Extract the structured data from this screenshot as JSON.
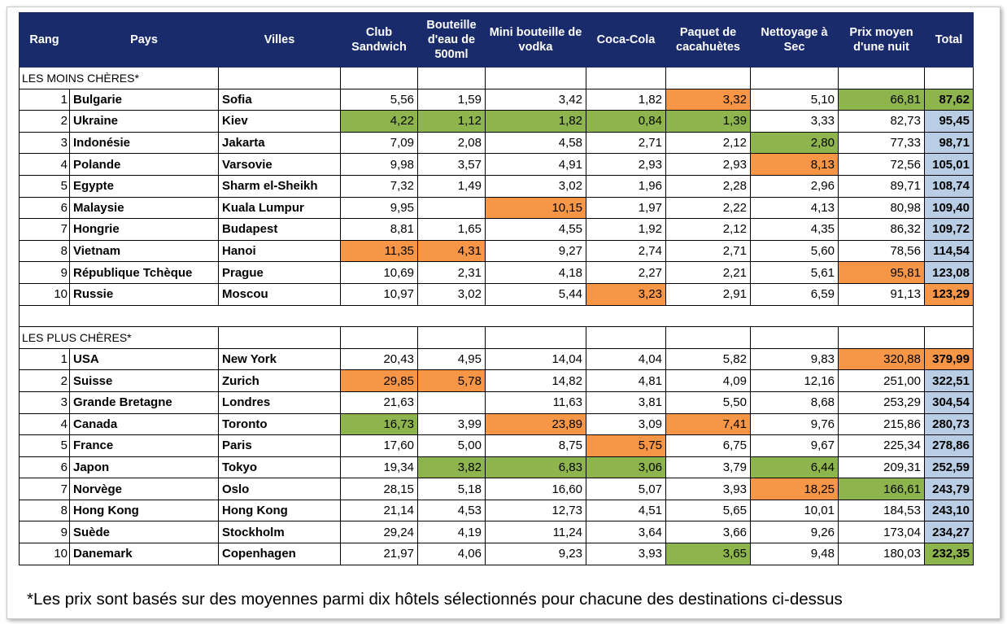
{
  "headers": [
    "Rang",
    "Pays",
    "Villes",
    "Club Sandwich",
    "Bouteille d'eau de 500ml",
    "Mini bouteille de vodka",
    "Coca-Cola",
    "Paquet de cacahuètes",
    "Nettoyage à Sec",
    "Prix moyen d'une nuit",
    "Total"
  ],
  "colors": {
    "header": "#1a2b6b",
    "green": "#8db44d",
    "orange": "#f79646",
    "total_blue": "#b9cde5"
  },
  "sections": [
    {
      "title": "LES MOINS CHÈRES*",
      "rows": [
        {
          "rank": "1",
          "country": "Bulgarie",
          "city": "Sofia",
          "values": [
            "5,56",
            "1,59",
            "3,42",
            "1,82",
            "3,32",
            "5,10",
            "66,81"
          ],
          "total": "87,62",
          "hl": [
            "",
            "",
            "",
            "",
            "orange",
            "",
            "green"
          ],
          "total_hl": "green"
        },
        {
          "rank": "2",
          "country": "Ukraine",
          "city": "Kiev",
          "values": [
            "4,22",
            "1,12",
            "1,82",
            "0,84",
            "1,39",
            "3,33",
            "82,73"
          ],
          "total": "95,45",
          "hl": [
            "green",
            "green",
            "green",
            "green",
            "green",
            "",
            ""
          ],
          "total_hl": "blue"
        },
        {
          "rank": "3",
          "country": "Indonésie",
          "city": "Jakarta",
          "values": [
            "7,09",
            "2,08",
            "4,58",
            "2,71",
            "2,12",
            "2,80",
            "77,33"
          ],
          "total": "98,71",
          "hl": [
            "",
            "",
            "",
            "",
            "",
            "green",
            ""
          ],
          "total_hl": "blue"
        },
        {
          "rank": "4",
          "country": "Polande",
          "city": "Varsovie",
          "values": [
            "9,98",
            "3,57",
            "4,91",
            "2,93",
            "2,93",
            "8,13",
            "72,56"
          ],
          "total": "105,01",
          "hl": [
            "",
            "",
            "",
            "",
            "",
            "orange",
            ""
          ],
          "total_hl": "blue"
        },
        {
          "rank": "5",
          "country": "Egypte",
          "city": "Sharm el-Sheikh",
          "values": [
            "7,32",
            "1,49",
            "3,02",
            "1,96",
            "2,28",
            "2,96",
            "89,71"
          ],
          "total": "108,74",
          "hl": [
            "",
            "",
            "",
            "",
            "",
            "",
            ""
          ],
          "total_hl": "blue"
        },
        {
          "rank": "6",
          "country": "Malaysie",
          "city": "Kuala Lumpur",
          "values": [
            "9,95",
            "",
            "10,15",
            "1,97",
            "2,22",
            "4,13",
            "80,98"
          ],
          "total": "109,40",
          "hl": [
            "",
            "",
            "orange",
            "",
            "",
            "",
            ""
          ],
          "total_hl": "blue"
        },
        {
          "rank": "7",
          "country": "Hongrie",
          "city": "Budapest",
          "values": [
            "8,81",
            "1,65",
            "4,55",
            "1,92",
            "2,12",
            "4,35",
            "86,32"
          ],
          "total": "109,72",
          "hl": [
            "",
            "",
            "",
            "",
            "",
            "",
            ""
          ],
          "total_hl": "blue"
        },
        {
          "rank": "8",
          "country": "Vietnam",
          "city": "Hanoi",
          "values": [
            "11,35",
            "4,31",
            "9,27",
            "2,74",
            "2,71",
            "5,60",
            "78,56"
          ],
          "total": "114,54",
          "hl": [
            "orange",
            "orange",
            "",
            "",
            "",
            "",
            ""
          ],
          "total_hl": "blue"
        },
        {
          "rank": "9",
          "country": "République Tchèque",
          "city": "Prague",
          "values": [
            "10,69",
            "2,31",
            "4,18",
            "2,27",
            "2,21",
            "5,61",
            "95,81"
          ],
          "total": "123,08",
          "hl": [
            "",
            "",
            "",
            "",
            "",
            "",
            "orange"
          ],
          "total_hl": "blue"
        },
        {
          "rank": "10",
          "country": "Russie",
          "city": "Moscou",
          "values": [
            "10,97",
            "3,02",
            "5,44",
            "3,23",
            "2,91",
            "6,59",
            "91,13"
          ],
          "total": "123,29",
          "hl": [
            "",
            "",
            "",
            "orange",
            "",
            "",
            ""
          ],
          "total_hl": "orange"
        }
      ]
    },
    {
      "title": "LES PLUS CHÈRES*",
      "rows": [
        {
          "rank": "1",
          "country": "USA",
          "city": "New York",
          "values": [
            "20,43",
            "4,95",
            "14,04",
            "4,04",
            "5,82",
            "9,83",
            "320,88"
          ],
          "total": "379,99",
          "hl": [
            "",
            "",
            "",
            "",
            "",
            "",
            "orange"
          ],
          "total_hl": "orange"
        },
        {
          "rank": "2",
          "country": "Suisse",
          "city": "Zurich",
          "values": [
            "29,85",
            "5,78",
            "14,82",
            "4,81",
            "4,09",
            "12,16",
            "251,00"
          ],
          "total": "322,51",
          "hl": [
            "orange",
            "orange",
            "",
            "",
            "",
            "",
            ""
          ],
          "total_hl": "blue"
        },
        {
          "rank": "3",
          "country": "Grande Bretagne",
          "city": "Londres",
          "values": [
            "21,63",
            "",
            "11,63",
            "3,81",
            "5,50",
            "8,68",
            "253,29"
          ],
          "total": "304,54",
          "hl": [
            "",
            "",
            "",
            "",
            "",
            "",
            ""
          ],
          "total_hl": "blue"
        },
        {
          "rank": "4",
          "country": "Canada",
          "city": "Toronto",
          "values": [
            "16,73",
            "3,99",
            "23,89",
            "3,09",
            "7,41",
            "9,76",
            "215,86"
          ],
          "total": "280,73",
          "hl": [
            "green",
            "",
            "orange",
            "",
            "orange",
            "",
            ""
          ],
          "total_hl": "blue"
        },
        {
          "rank": "5",
          "country": "France",
          "city": "Paris",
          "values": [
            "17,60",
            "5,00",
            "8,75",
            "5,75",
            "6,75",
            "9,67",
            "225,34"
          ],
          "total": "278,86",
          "hl": [
            "",
            "",
            "",
            "orange",
            "",
            "",
            ""
          ],
          "total_hl": "blue"
        },
        {
          "rank": "6",
          "country": "Japon",
          "city": "Tokyo",
          "values": [
            "19,34",
            "3,82",
            "6,83",
            "3,06",
            "3,79",
            "6,44",
            "209,31"
          ],
          "total": "252,59",
          "hl": [
            "",
            "green",
            "green",
            "green",
            "",
            "green",
            ""
          ],
          "total_hl": "blue"
        },
        {
          "rank": "7",
          "country": "Norvège",
          "city": "Oslo",
          "values": [
            "28,15",
            "5,18",
            "16,60",
            "5,07",
            "3,93",
            "18,25",
            "166,61"
          ],
          "total": "243,79",
          "hl": [
            "",
            "",
            "",
            "",
            "",
            "orange",
            "green"
          ],
          "total_hl": "blue"
        },
        {
          "rank": "8",
          "country": "Hong Kong",
          "city": "Hong Kong",
          "values": [
            "21,14",
            "4,53",
            "12,73",
            "4,51",
            "5,65",
            "10,01",
            "184,53"
          ],
          "total": "243,10",
          "hl": [
            "",
            "",
            "",
            "",
            "",
            "",
            ""
          ],
          "total_hl": "blue"
        },
        {
          "rank": "9",
          "country": "Suède",
          "city": "Stockholm",
          "values": [
            "29,24",
            "4,19",
            "11,24",
            "3,64",
            "3,66",
            "9,26",
            "173,04"
          ],
          "total": "234,27",
          "hl": [
            "",
            "",
            "",
            "",
            "",
            "",
            ""
          ],
          "total_hl": "blue"
        },
        {
          "rank": "10",
          "country": "Danemark",
          "city": "Copenhagen",
          "values": [
            "21,97",
            "4,06",
            "9,23",
            "3,93",
            "3,65",
            "9,48",
            "180,03"
          ],
          "total": "232,35",
          "hl": [
            "",
            "",
            "",
            "",
            "green",
            "",
            ""
          ],
          "total_hl": "green"
        }
      ]
    }
  ],
  "footnote": "*Les prix sont basés sur des moyennes parmi dix hôtels sélectionnés pour chacune des destinations ci-dessus"
}
